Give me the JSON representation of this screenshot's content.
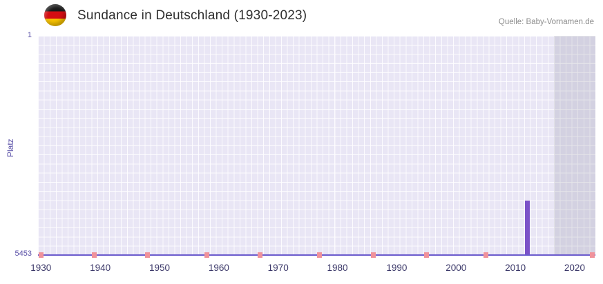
{
  "header": {
    "title": "Sundance in Deutschland (1930-2023)",
    "source": "Quelle: Baby-Vornamen.de",
    "flag": "german-flag"
  },
  "chart_data": {
    "type": "bar",
    "title": "Sundance in Deutschland (1930-2023)",
    "xlabel": "",
    "ylabel": "Platz",
    "y_axis": {
      "min": 1,
      "max": 5453,
      "inverted": true,
      "top_label": "1",
      "bottom_label": "5453"
    },
    "x_axis": {
      "min": 1930,
      "max": 2023,
      "ticks": [
        1930,
        1940,
        1950,
        1960,
        1970,
        1980,
        1990,
        2000,
        2010,
        2020
      ]
    },
    "bars": [
      {
        "year": 2012,
        "rank": 4100
      }
    ],
    "bottom_markers": {
      "rank": 5453,
      "years": [
        1930,
        1939,
        1948,
        1958,
        1967,
        1977,
        1986,
        1995,
        2005,
        2023
      ]
    },
    "highlight_region": {
      "from": 2017,
      "to": 2023
    },
    "grid": true,
    "legend": "none",
    "colors": {
      "bar": "#7b52c8",
      "marker": "#f0929b",
      "plot_background": "#e9e6f5",
      "highlight_region": "#dcdae6",
      "axis_line": "#6a5acd",
      "x_tick_label": "#3a3768",
      "y_tick_label": "#5b51a8",
      "title": "#2f2f2f",
      "source": "#8c8c8c"
    }
  }
}
